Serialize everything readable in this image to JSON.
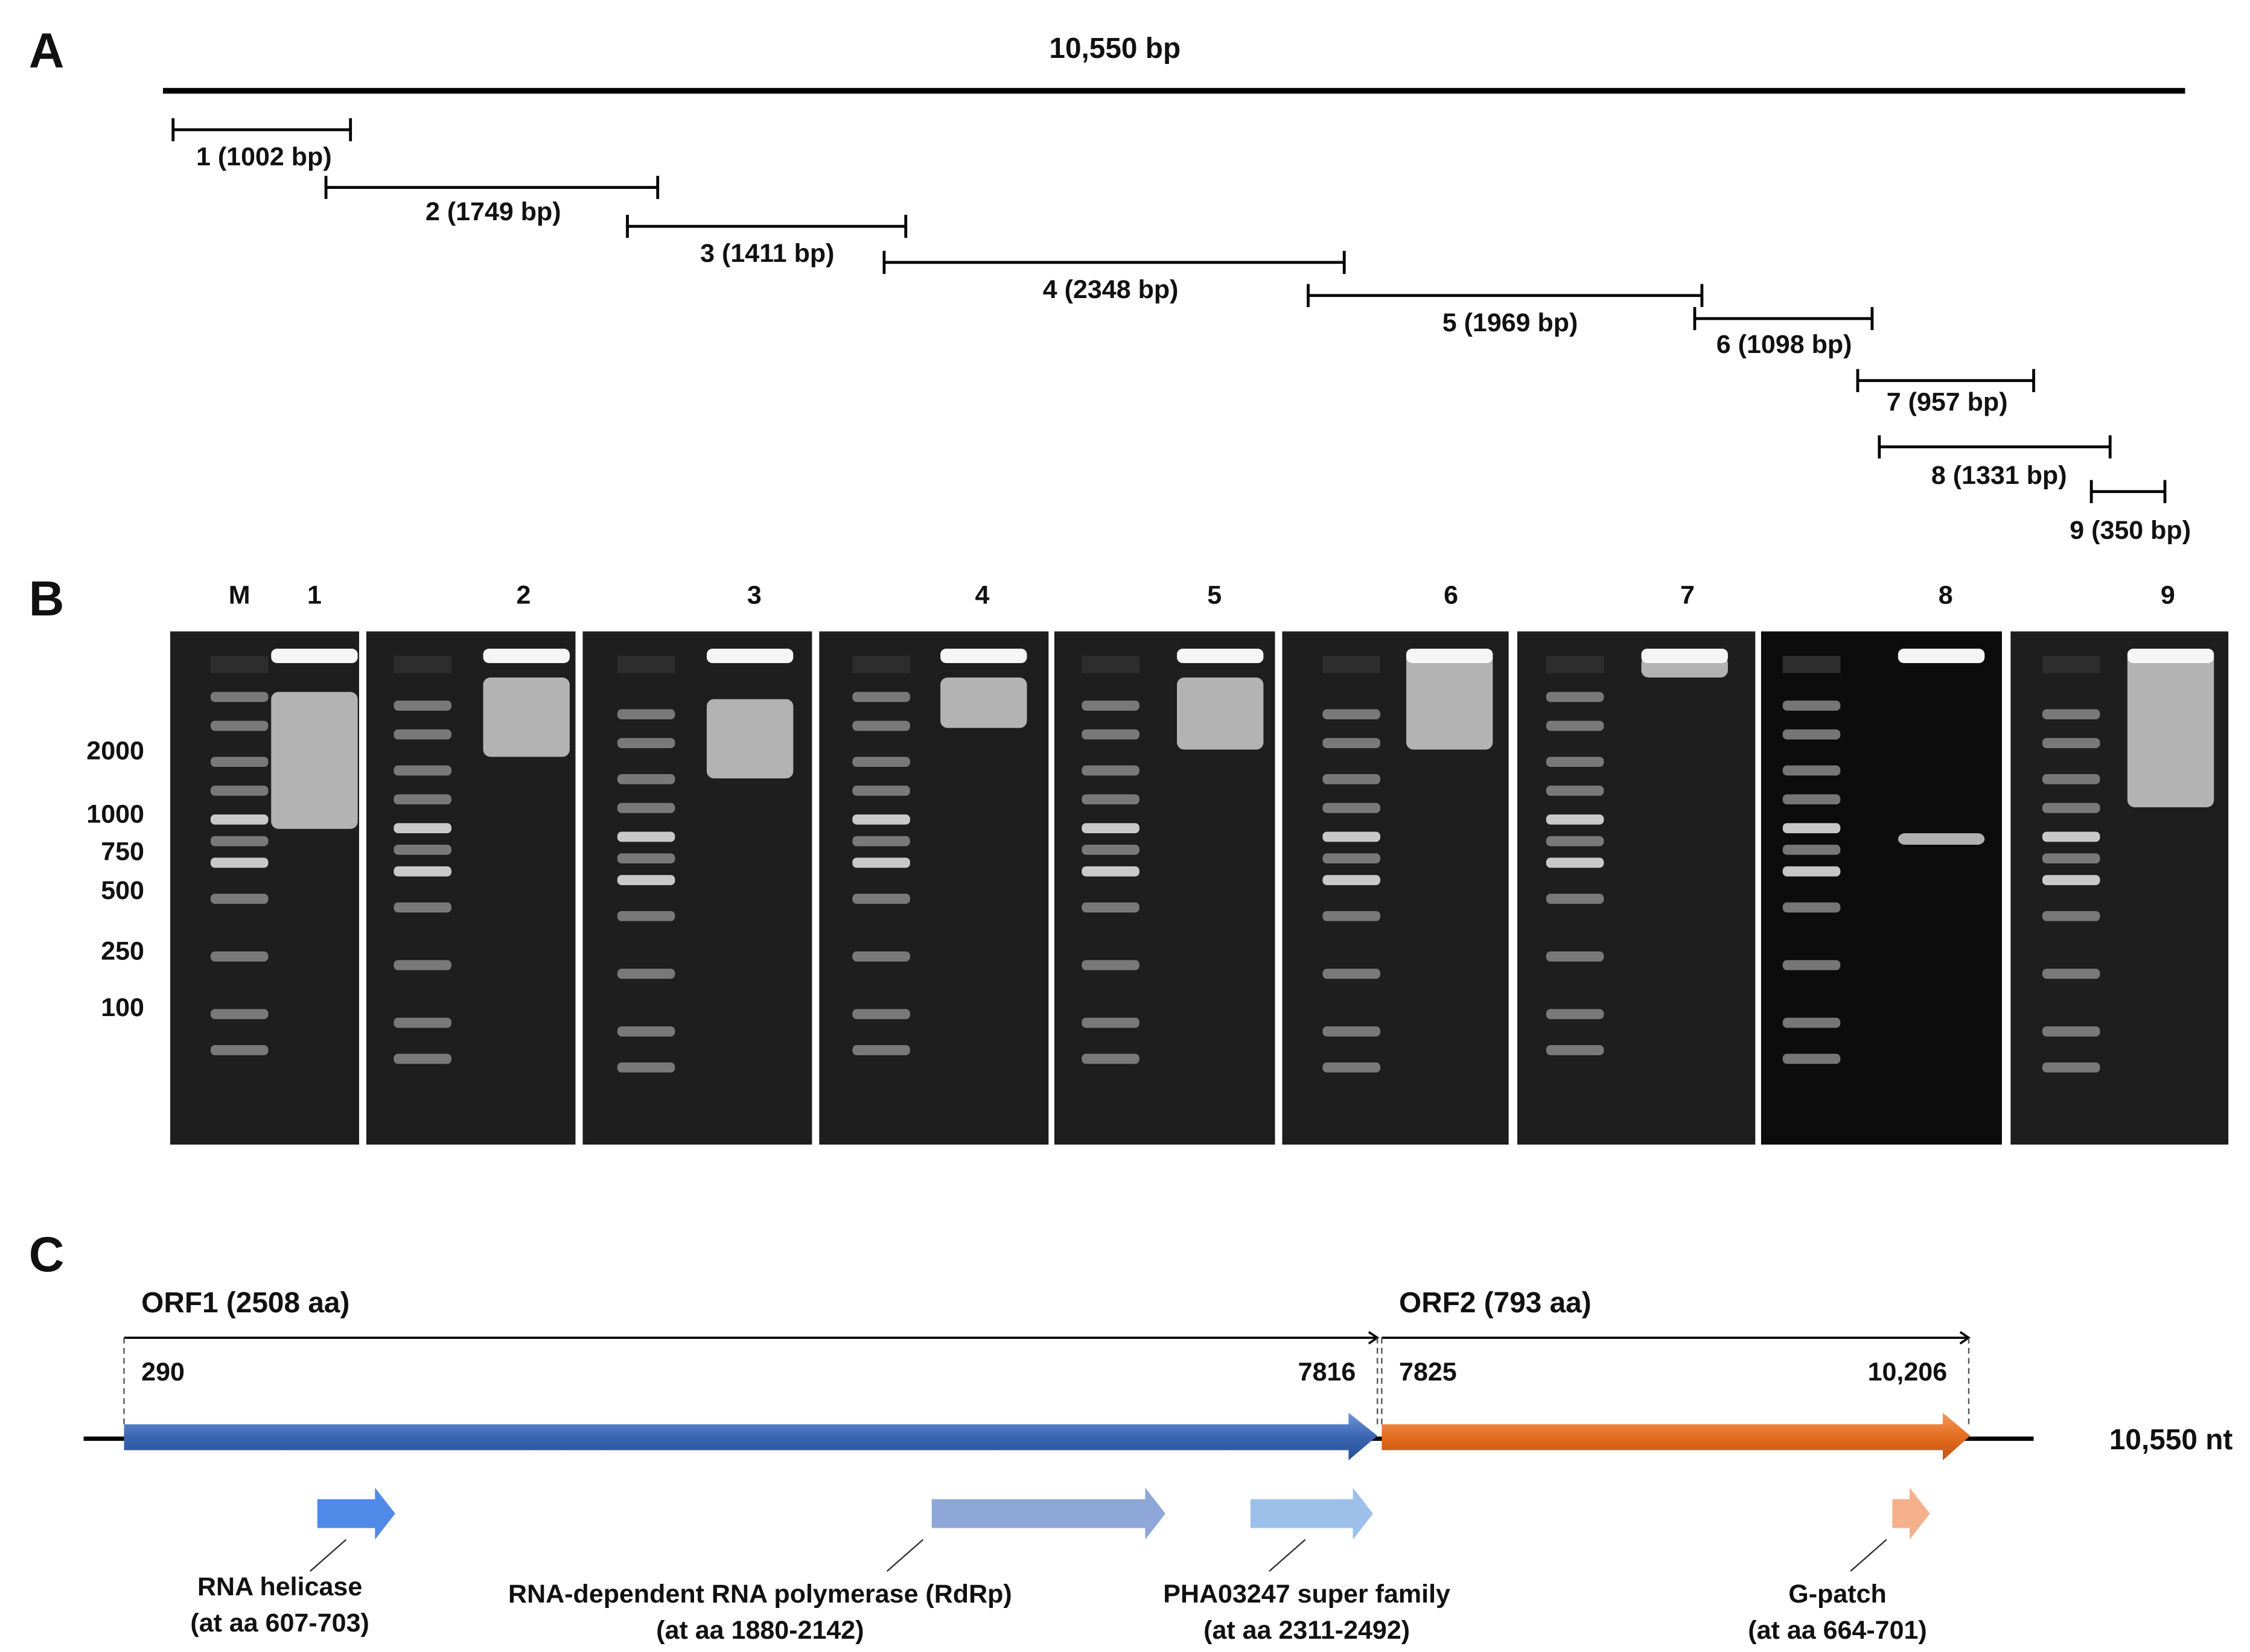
{
  "panel_a": {
    "label": "A",
    "genome_length": "10,550 bp",
    "fragments": [
      "1 (1002 bp)",
      "2 (1749 bp)",
      "3 (1411 bp)",
      "4 (2348 bp)",
      "5 (1969 bp)",
      "6 (1098 bp)",
      "7 (957 bp)",
      "8 (1331 bp)",
      "9 (350 bp)"
    ]
  },
  "panel_b": {
    "label": "B",
    "lanes": [
      "M",
      "1",
      "2",
      "3",
      "4",
      "5",
      "6",
      "7",
      "8",
      "9"
    ],
    "ladder": [
      "2000",
      "1000",
      "750",
      "500",
      "250",
      "100"
    ]
  },
  "panel_c": {
    "label": "C",
    "orf1": {
      "name": "ORF1 (2508 aa)",
      "start": "290",
      "end": "7816"
    },
    "orf2": {
      "name": "ORF2 (793 aa)",
      "start": "7825",
      "end": "10,206"
    },
    "genome_length": "10,550 nt",
    "domains": [
      {
        "name": "RNA helicase",
        "range": "(at aa 607-703)"
      },
      {
        "name": "RNA-dependent RNA polymerase (RdRp)",
        "range": "(at aa 1880-2142)"
      },
      {
        "name": "PHA03247 super family",
        "range": "(at aa 2311-2492)"
      },
      {
        "name": "G-patch",
        "range": "(at aa 664-701)"
      }
    ]
  }
}
